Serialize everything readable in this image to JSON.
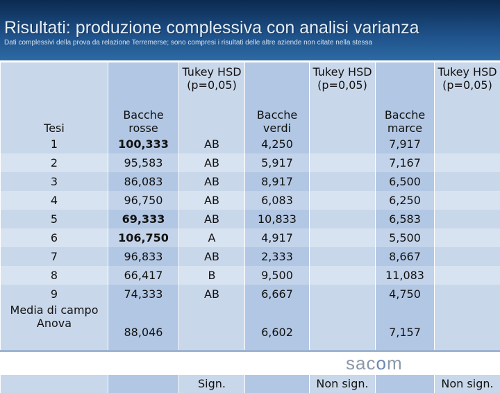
{
  "title": "Risultati: produzione complessiva con analisi varianza",
  "subtitle": "Dati complessivi della prova da relazione Terremerse; sono compresi i risultati delle altre aziende non citate nella stessa",
  "table": {
    "headers": {
      "tesi": "Tesi",
      "rosse": "Bacche rosse",
      "tukey1": "Tukey HSD (p=0,05)",
      "verdi": "Bacche verdi",
      "tukey2": "Tukey HSD (p=0,05)",
      "marce": "Bacche marce",
      "tukey3": "Tukey HSD (p=0,05)"
    },
    "rows": [
      {
        "tesi": "1",
        "rosse": "100,333",
        "rosse_bold": true,
        "tukey1": "AB",
        "verdi": "4,250",
        "tukey2": "",
        "marce": "7,917",
        "tukey3": ""
      },
      {
        "tesi": "2",
        "rosse": "95,583",
        "rosse_bold": false,
        "tukey1": "AB",
        "verdi": "5,917",
        "tukey2": "",
        "marce": "7,167",
        "tukey3": ""
      },
      {
        "tesi": "3",
        "rosse": "86,083",
        "rosse_bold": false,
        "tukey1": "AB",
        "verdi": "8,917",
        "tukey2": "",
        "marce": "6,500",
        "tukey3": ""
      },
      {
        "tesi": "4",
        "rosse": "96,750",
        "rosse_bold": false,
        "tukey1": "AB",
        "verdi": "6,083",
        "tukey2": "",
        "marce": "6,250",
        "tukey3": ""
      },
      {
        "tesi": "5",
        "rosse": "69,333",
        "rosse_bold": true,
        "tukey1": "AB",
        "verdi": "10,833",
        "tukey2": "",
        "marce": "6,583",
        "tukey3": ""
      },
      {
        "tesi": "6",
        "rosse": "106,750",
        "rosse_bold": true,
        "tukey1": "A",
        "verdi": "4,917",
        "tukey2": "",
        "marce": "5,500",
        "tukey3": ""
      },
      {
        "tesi": "7",
        "rosse": "96,833",
        "rosse_bold": false,
        "tukey1": "AB",
        "verdi": "2,333",
        "tukey2": "",
        "marce": "8,667",
        "tukey3": ""
      },
      {
        "tesi": "8",
        "rosse": "66,417",
        "rosse_bold": false,
        "tukey1": "B",
        "verdi": "9,500",
        "tukey2": "",
        "marce": "11,083",
        "tukey3": ""
      },
      {
        "tesi": "9",
        "rosse": "74,333",
        "rosse_bold": false,
        "tukey1": "AB",
        "verdi": "6,667",
        "tukey2": "",
        "marce": "4,750",
        "tukey3": ""
      }
    ],
    "summary": {
      "tesi": "Media di campo Anova",
      "rosse": "88,046",
      "tukey1": "Sign.",
      "verdi": "6,602",
      "tukey2": "Non sign.",
      "marce": "7,157",
      "tukey3": "Non sign."
    }
  },
  "logo": {
    "prefix": "sac",
    "o": "o",
    "suffix": "m"
  },
  "colors": {
    "header_dark": "#0b2a50",
    "header_light": "#2d6aa4",
    "cell_light": "#c9d7ea",
    "cell_dark": "#b2c7e3"
  }
}
